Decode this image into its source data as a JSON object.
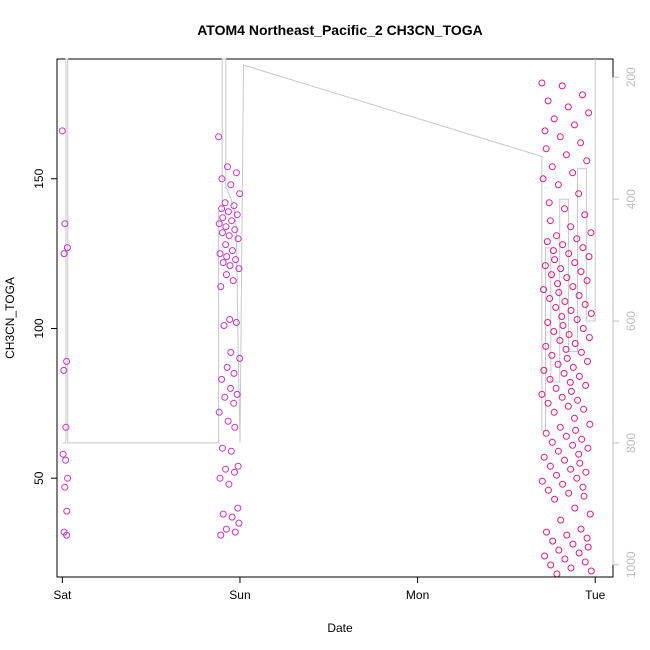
{
  "chart_data": {
    "type": "scatter",
    "title": "ATOM4 Northeast_Pacific_2 CH3CN_TOGA",
    "xlabel": "Date",
    "ylabel": "CH3CN_TOGA",
    "x_ticks": [
      "Sat",
      "Sun",
      "Mon",
      "Tue"
    ],
    "x_range_days": [
      -0.03,
      3.1
    ],
    "y_ticks": [
      50,
      100,
      150
    ],
    "ylim": [
      17,
      190
    ],
    "y2_ticks": [
      200,
      400,
      600,
      800,
      1000
    ],
    "y2lim": [
      1020,
      170
    ],
    "colors": {
      "point_early": "#cc33cc",
      "point_late": "#e6197f",
      "secondary_line": "#c8c8c8",
      "secondary_axis": "#bdbdbd"
    },
    "series": [
      {
        "role": "scatter-points",
        "clusters": [
          {
            "x_start": 0.0,
            "x_end": 0.03,
            "values": [
              166,
              135,
              127,
              125,
              89,
              86,
              67,
              58,
              56,
              50,
              47,
              39,
              32,
              31
            ]
          },
          {
            "x_start": 0.88,
            "x_end": 1.0,
            "values": [
              164,
              154,
              152,
              150,
              148,
              145,
              142,
              141,
              140,
              139,
              138,
              137,
              136,
              135,
              134,
              133,
              132,
              131,
              130,
              128,
              126,
              125,
              124,
              123,
              122,
              121,
              120,
              118,
              116,
              114,
              103,
              102,
              101,
              92,
              90,
              87,
              85,
              83,
              80,
              78,
              77,
              75,
              72,
              69,
              67,
              60,
              59,
              54,
              53,
              52,
              50,
              48,
              40,
              38,
              37,
              35,
              33,
              32,
              31
            ]
          },
          {
            "x_start": 2.7,
            "x_end": 2.98,
            "values": [
              182,
              181,
              178,
              176,
              174,
              172,
              170,
              168,
              166,
              164,
              162,
              160,
              158,
              156,
              154,
              152,
              150,
              148,
              145,
              142,
              140,
              138,
              136,
              134,
              132,
              131,
              130,
              129,
              128,
              127,
              126,
              125,
              124,
              123,
              122,
              121,
              120,
              119,
              118,
              117,
              116,
              115,
              114,
              113,
              112,
              111,
              110,
              109,
              108,
              107,
              106,
              105,
              104,
              103,
              102,
              101,
              100,
              99,
              98,
              97,
              96,
              95,
              94,
              93,
              92,
              91,
              90,
              89,
              88,
              87,
              86,
              85,
              84,
              83,
              82,
              81,
              80,
              79,
              78,
              77,
              76,
              75,
              74,
              73,
              72,
              70,
              68,
              67,
              66,
              65,
              64,
              63,
              62,
              61,
              60,
              59,
              58,
              57,
              56,
              55,
              54,
              53,
              52,
              51,
              50,
              49,
              48,
              47,
              46,
              45,
              44,
              43,
              40,
              38,
              36,
              33,
              32,
              31,
              30,
              29,
              28,
              27,
              26,
              25,
              24,
              23,
              22,
              21,
              20,
              19,
              18
            ]
          }
        ]
      },
      {
        "role": "secondary-axis-line",
        "x": [
          0.0,
          0.02,
          0.02,
          0.03,
          0.03,
          0.88,
          0.88,
          0.9,
          0.9,
          0.92,
          0.92,
          0.95,
          0.97,
          0.98,
          0.99,
          1.0,
          1.02,
          2.7,
          2.7,
          2.72,
          2.72,
          2.75,
          2.75,
          2.8,
          2.8,
          2.85,
          2.85,
          2.9,
          2.9,
          2.95,
          2.95,
          3.0,
          3.0
        ],
        "values": [
          800,
          800,
          170,
          170,
          800,
          800,
          420,
          420,
          170,
          170,
          380,
          400,
          420,
          450,
          650,
          800,
          180,
          330,
          780,
          780,
          480,
          480,
          700,
          700,
          400,
          400,
          650,
          650,
          350,
          350,
          600,
          600,
          170
        ]
      }
    ]
  }
}
